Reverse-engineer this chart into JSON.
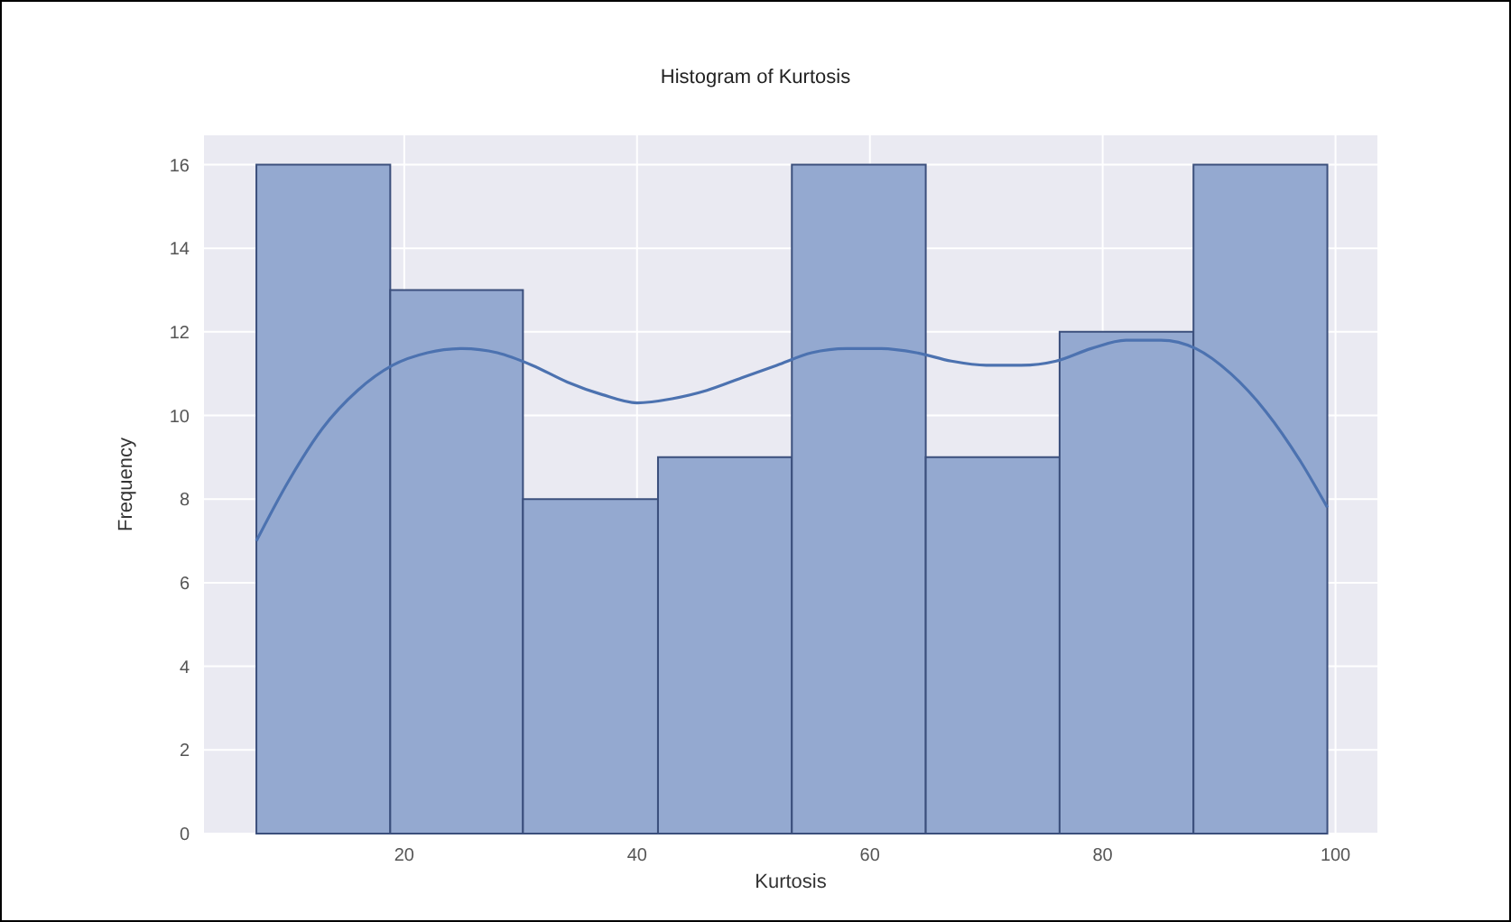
{
  "chart_data": {
    "type": "histogram",
    "title": "Histogram of Kurtosis",
    "xlabel": "Kurtosis",
    "ylabel": "Frequency",
    "bins": [
      7.3,
      18.8,
      30.2,
      41.8,
      53.3,
      64.8,
      76.3,
      87.8,
      99.3
    ],
    "series": [
      {
        "color": "#94a9d0",
        "values": [
          16,
          13,
          8,
          9,
          16,
          9,
          12,
          16
        ]
      },
      {
        "type": "line",
        "color": "#4c72b0",
        "x": [
          7.3,
          10,
          13,
          16,
          19,
          22,
          25,
          28,
          31,
          34,
          37,
          40,
          43,
          46,
          49,
          52,
          55,
          58,
          61,
          64,
          67,
          70,
          73,
          76,
          79,
          82,
          85,
          88,
          91,
          94,
          97,
          99.3
        ],
        "values": [
          7,
          8.4,
          9.7,
          10.6,
          11.2,
          11.5,
          11.6,
          11.5,
          11.2,
          10.8,
          10.5,
          10.3,
          10.4,
          10.6,
          10.9,
          11.2,
          11.5,
          11.6,
          11.6,
          11.5,
          11.3,
          11.2,
          11.2,
          11.3,
          11.6,
          11.8,
          11.8,
          11.6,
          11,
          10.1,
          8.9,
          7.8
        ]
      }
    ],
    "xlim": [
      2.8,
      103.6
    ],
    "xticks": [
      20,
      40,
      60,
      80,
      100
    ],
    "ylim": [
      0,
      16.7
    ],
    "yticks": [
      0,
      2,
      4,
      6,
      8,
      10,
      12,
      14,
      16
    ],
    "grid": true
  }
}
